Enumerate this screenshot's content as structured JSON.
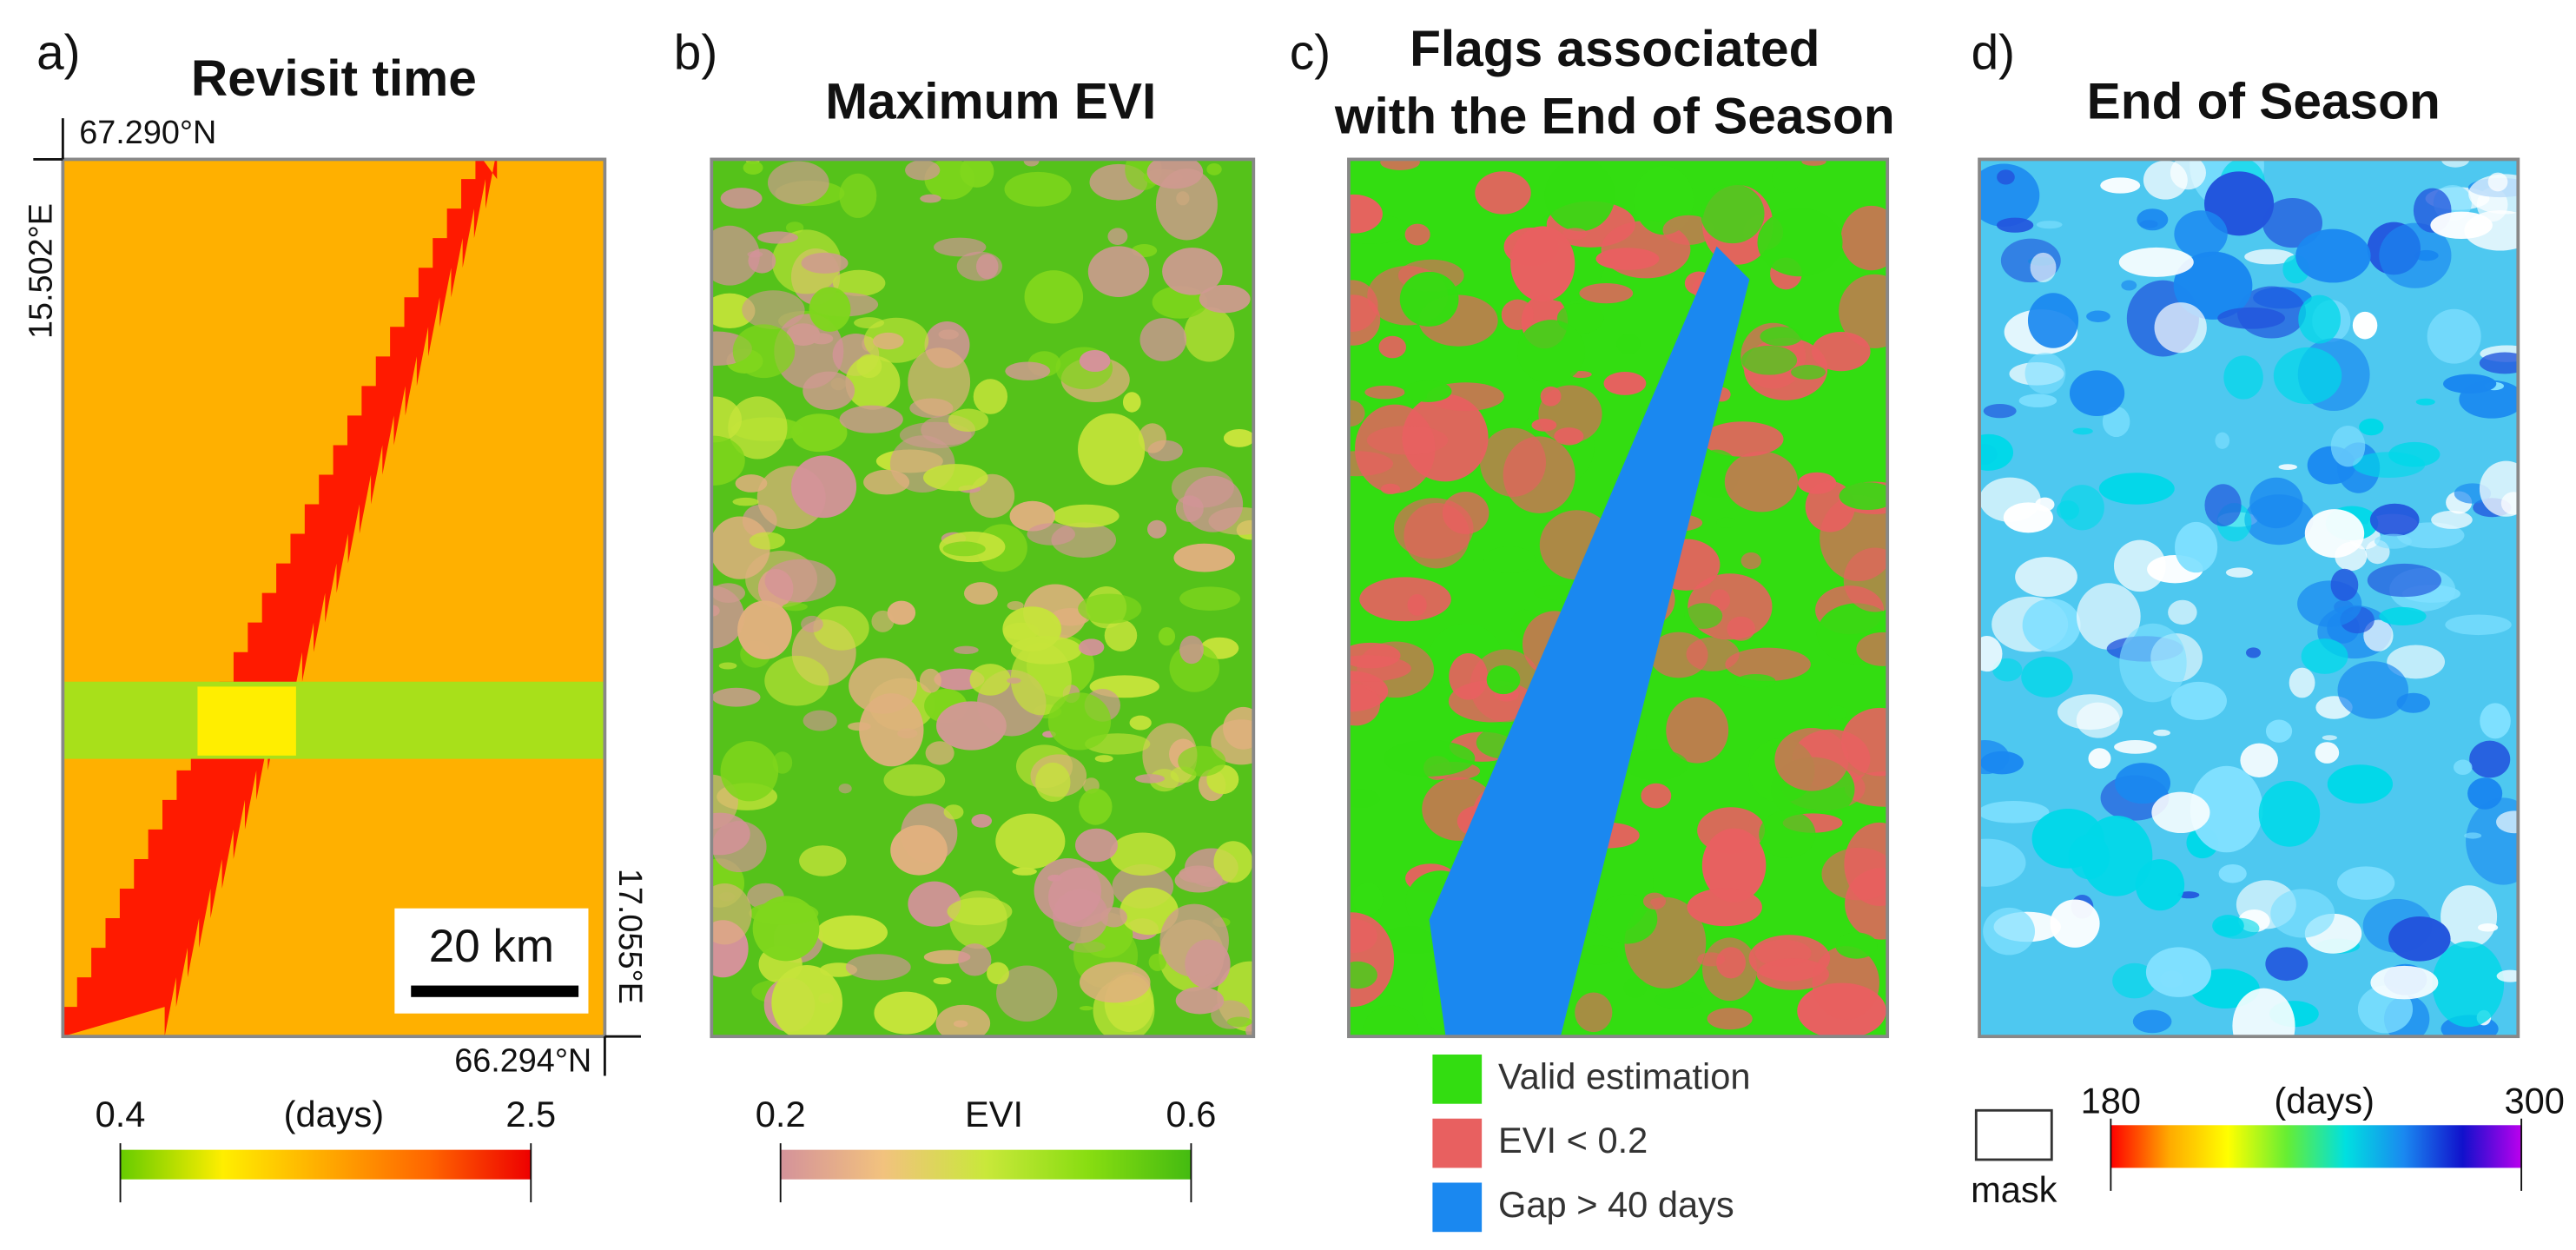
{
  "panels": [
    {
      "label": "a)",
      "title": "Revisit time",
      "coordinates": {
        "top_lat": "67.290°N",
        "left_lon": "15.502°E",
        "right_lon": "17.055°E",
        "bottom_lat": "66.294°N"
      },
      "scale_bar": "20 km",
      "colorbar": {
        "min": "0.4",
        "unit": "(days)",
        "max": "2.5",
        "colors": [
          "#66cc00",
          "#ffee00",
          "#ffaa00",
          "#ff6600",
          "#ee0000"
        ]
      }
    },
    {
      "label": "b)",
      "title": "Maximum EVI",
      "colorbar": {
        "min": "0.2",
        "unit": "EVI",
        "max": "0.6",
        "colors": [
          "#d4929a",
          "#f2c27e",
          "#c9e83a",
          "#88dd11",
          "#44bb11"
        ]
      }
    },
    {
      "label": "c)",
      "title_lines": [
        "Flags associated",
        "with the End of Season"
      ],
      "legend": [
        {
          "label": "Valid estimation",
          "color": "#33dd11"
        },
        {
          "label": "EVI < 0.2",
          "color": "#e86060"
        },
        {
          "label": "Gap > 40 days",
          "color": "#1a88f0"
        }
      ]
    },
    {
      "label": "d)",
      "title": "End of Season",
      "mask_label": "mask",
      "colorbar": {
        "min": "180",
        "unit": "(days)",
        "max": "300",
        "colors": [
          "#ff0000",
          "#ffaa00",
          "#ffff00",
          "#66ee33",
          "#00e0e0",
          "#1a88f0",
          "#1111cc",
          "#bb00ee"
        ]
      }
    }
  ]
}
